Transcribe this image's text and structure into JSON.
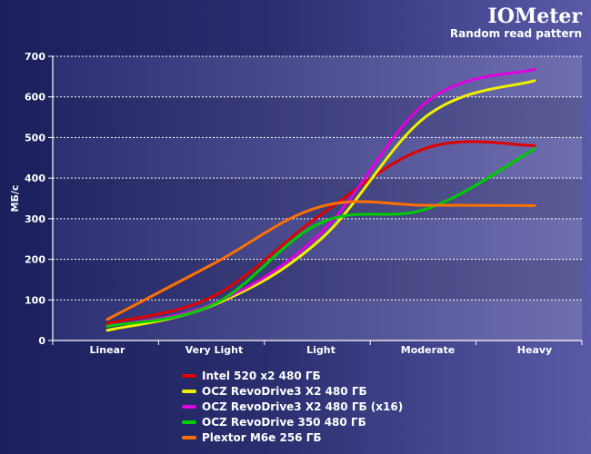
{
  "header": {
    "title": "IOMeter",
    "subtitle": "Random read pattern"
  },
  "chart_data": {
    "type": "line",
    "title": "IOMeter",
    "subtitle": "Random read pattern",
    "xlabel": "",
    "ylabel": "МБ/с",
    "ylim": [
      0,
      700
    ],
    "yticks": [
      0,
      100,
      200,
      300,
      400,
      500,
      600,
      700
    ],
    "categories": [
      "Linear",
      "Very Light",
      "Light",
      "Moderate",
      "Heavy"
    ],
    "series": [
      {
        "name": "Intel 520 x2 480 ГБ",
        "color": "#e00000",
        "values": [
          42,
          110,
          310,
          475,
          480
        ]
      },
      {
        "name": "OCZ RevoDrive3 X2 480 ГБ",
        "color": "#f0f000",
        "values": [
          25,
          88,
          250,
          555,
          640
        ]
      },
      {
        "name": "OCZ RevoDrive3 X2 480 ГБ (x16)",
        "color": "#e000e0",
        "values": [
          35,
          92,
          265,
          590,
          668
        ]
      },
      {
        "name": "OCZ RevoDrive 350 480 ГБ",
        "color": "#00cc00",
        "values": [
          35,
          90,
          290,
          325,
          472
        ]
      },
      {
        "name": "Plextor M6e 256 ГБ",
        "color": "#ff7000",
        "values": [
          52,
          190,
          330,
          333,
          332
        ]
      }
    ]
  }
}
